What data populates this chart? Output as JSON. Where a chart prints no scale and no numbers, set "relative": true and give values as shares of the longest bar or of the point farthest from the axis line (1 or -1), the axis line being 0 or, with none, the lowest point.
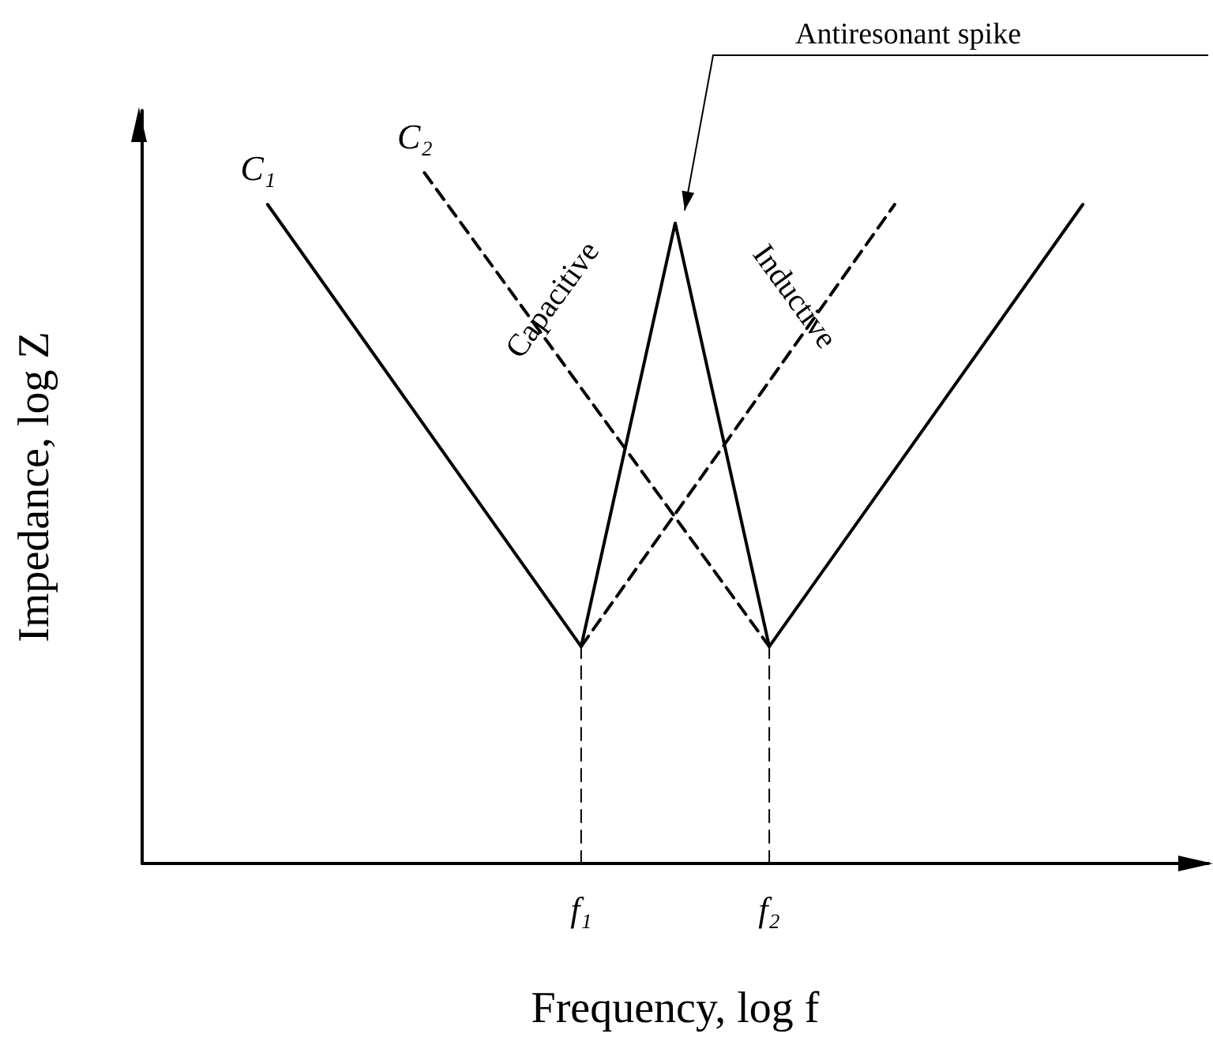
{
  "chart_data": {
    "type": "line",
    "relative": true,
    "xlabel": "Frequency, log f",
    "ylabel": "Impedance, log Z",
    "categories": [
      null,
      null,
      null,
      null,
      null,
      null,
      null,
      null,
      null,
      null,
      null,
      null,
      null,
      null,
      "f₁",
      null,
      null,
      null,
      null,
      null,
      "f₂",
      null,
      null,
      null,
      null,
      null,
      null,
      null,
      null,
      null,
      null,
      null,
      null,
      null,
      null
    ],
    "grid": false,
    "legend": false,
    "marker": "none",
    "series": [
      {
        "name": "C₁",
        "color": "#000000",
        "line_style": "solid",
        "values": [
          null,
          null,
          null,
          null,
          0.954,
          null,
          null,
          null,
          null,
          null,
          null,
          null,
          null,
          null,
          0.314,
          null,
          null,
          0.927,
          null,
          null,
          0.314,
          null,
          null,
          null,
          null,
          null,
          null,
          null,
          null,
          null,
          0.954,
          null,
          null,
          null,
          null
        ]
      },
      {
        "name": "C₂",
        "color": "#000000",
        "line_style": "dashed",
        "values": [
          null,
          null,
          null,
          null,
          null,
          null,
          null,
          null,
          null,
          1,
          null,
          null,
          null,
          null,
          null,
          null,
          null,
          null,
          null,
          null,
          0.314,
          null,
          null,
          null,
          null,
          null,
          null,
          null,
          null,
          null,
          null,
          null,
          null,
          null,
          null
        ]
      },
      {
        "color": "#000000",
        "line_style": "dashed",
        "values": [
          null,
          null,
          null,
          null,
          null,
          null,
          null,
          null,
          null,
          null,
          null,
          null,
          null,
          null,
          0.314,
          null,
          null,
          null,
          null,
          null,
          null,
          null,
          null,
          null,
          0.954,
          null,
          null,
          null,
          null,
          null,
          null,
          null,
          null,
          null,
          null
        ]
      },
      {
        "color": "#000000",
        "line_style": "dashed",
        "x": [
          "f₁",
          "f₁"
        ],
        "values": [
          0,
          0.314
        ]
      },
      {
        "color": "#000000",
        "line_style": "dashed",
        "x": [
          "f₂",
          "f₂"
        ],
        "values": [
          0,
          0.314
        ]
      }
    ],
    "annotations": [
      "Antiresonant spike",
      "Capacitive",
      "Inductive"
    ]
  }
}
